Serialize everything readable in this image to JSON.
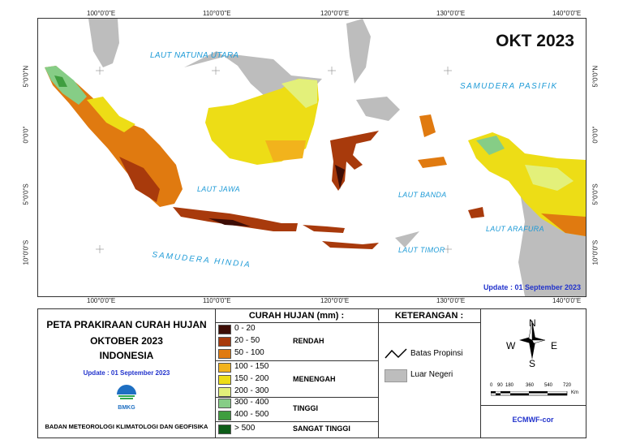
{
  "map": {
    "title": "OKT 2023",
    "update": "Update : 01 September  2023",
    "lon_ticks": [
      "100°0'0\"E",
      "110°0'0\"E",
      "120°0'0\"E",
      "130°0'0\"E",
      "140°0'0\"E"
    ],
    "lat_ticks": [
      "5°0'0\"N",
      "0°0'0\"",
      "5°0'0\"S",
      "10°0'0\"S"
    ],
    "seas": {
      "natuna": "LAUT NATUNA UTARA",
      "pasifik": "SAMUDERA  PASIFIK",
      "jawa": "LAUT JAWA",
      "banda": "LAUT BANDA",
      "arafura": "LAUT ARAFURA",
      "timor": "LAUT TIMOR",
      "hindia": "SAMUDERA  HINDIA"
    },
    "colors": {
      "rendah_dark": "#3d0d06",
      "rendah_mid": "#a83a0c",
      "rendah_light": "#e07a10",
      "menengah_dark": "#f2b31c",
      "menengah_mid": "#eddd16",
      "menengah_light": "#e3f07a",
      "tinggi_light": "#86cd86",
      "tinggi_dark": "#3f9e3f",
      "sangat_tinggi": "#0c5c18",
      "luar_negeri": "#bdbdbd",
      "sea_label": "#1f9bd7"
    }
  },
  "legend": {
    "title_line1": "PETA PRAKIRAAN CURAH HUJAN",
    "title_line2": "OKTOBER 2023",
    "title_line3": "INDONESIA",
    "update": "Update : 01 September  2023",
    "logo_text": "BMKG",
    "agency": "BADAN METEOROLOGI KLIMATOLOGI DAN GEOFISIKA",
    "curah_title": "CURAH HUJAN (mm) :",
    "classes": [
      {
        "range": "0 - 20",
        "color": "#3d0d06"
      },
      {
        "range": "20 - 50",
        "color": "#a83a0c"
      },
      {
        "range": "50 - 100",
        "color": "#e07a10"
      },
      {
        "range": "100 - 150",
        "color": "#f2b31c"
      },
      {
        "range": "150 - 200",
        "color": "#eddd16"
      },
      {
        "range": "200 - 300",
        "color": "#e3f07a"
      },
      {
        "range": "300 - 400",
        "color": "#86cd86"
      },
      {
        "range": "400 - 500",
        "color": "#3f9e3f"
      },
      {
        "range": "> 500",
        "color": "#0c5c18"
      }
    ],
    "categories": {
      "rendah": "RENDAH",
      "menengah": "MENENGAH",
      "tinggi": "TINGGI",
      "sangat_tinggi": "SANGAT TINGGI"
    },
    "keterangan_title": "KETERANGAN :",
    "batas": "Batas Propinsi",
    "luar": "Luar Negeri",
    "compass": {
      "n": "N",
      "s": "S",
      "e": "E",
      "w": "W"
    },
    "scale_labels": [
      "0",
      "90",
      "180",
      "360",
      "540",
      "720"
    ],
    "scale_unit": "Km",
    "model": "ECMWF-cor"
  }
}
